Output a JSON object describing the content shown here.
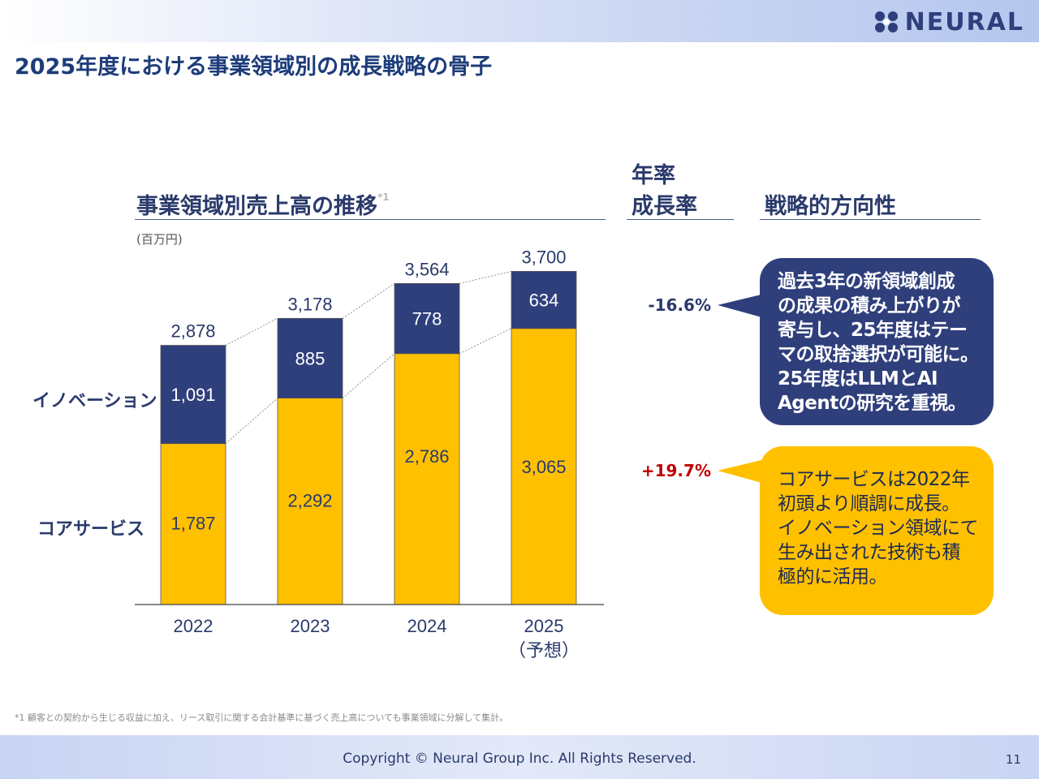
{
  "header": {
    "title": "2025年度における事業領域別の成長戦略の骨子",
    "logo_text": "NEURAL",
    "colors": {
      "navy": "#2f3f7c",
      "gold": "#ffc000",
      "negative": "#2a3a6b",
      "positive": "#c00000"
    }
  },
  "chart_section": {
    "heading": "事業領域別売上高の推移",
    "heading_note": "*1",
    "unit": "(百万円)",
    "segment_labels": {
      "innovation": "イノベーション",
      "core": "コアサービス"
    }
  },
  "rate_section": {
    "heading_line1": "年率",
    "heading_line2": "成長率"
  },
  "strategy_section": {
    "heading": "戦略的方向性"
  },
  "rates": {
    "innovation": "-16.6%",
    "core": "+19.7%"
  },
  "strategies": {
    "innovation": [
      "過去3年の新領域創成",
      "の成果の積み上がりが",
      "寄与し、25年度はテー",
      "マの取捨選択が可能に。",
      "25年度はLLMとAI",
      "Agentの研究を重視。"
    ],
    "core": [
      "コアサービスは2022年",
      "初頭より順調に成長。",
      "イノベーション領域にて",
      "生み出された技術も積",
      "極的に活用。"
    ]
  },
  "chart_data": {
    "type": "bar",
    "stacked": true,
    "categories": [
      "2022",
      "2023",
      "2024",
      "2025"
    ],
    "category_notes": [
      "",
      "",
      "",
      "（予想）"
    ],
    "series": [
      {
        "name": "コアサービス",
        "values": [
          1787,
          2292,
          2786,
          3065
        ],
        "color": "#ffc000"
      },
      {
        "name": "イノベーション",
        "values": [
          1091,
          885,
          778,
          634
        ],
        "color": "#2f3f7c"
      }
    ],
    "totals": [
      2878,
      3178,
      3564,
      3700
    ],
    "total_labels": [
      "2,878",
      "3,178",
      "3,564",
      "3,700"
    ],
    "value_labels": {
      "コアサービス": [
        "1,787",
        "2,292",
        "2,786",
        "3,065"
      ],
      "イノベーション": [
        "1,091",
        "885",
        "778",
        "634"
      ]
    },
    "ylim": [
      0,
      4000
    ]
  },
  "footer": {
    "footnote": "*1 顧客との契約から生じる収益に加え、リース取引に関する会計基準に基づく売上高についても事業領域に分解して集計。",
    "copyright": "Copyright © Neural Group Inc. All Rights Reserved.",
    "page": "11"
  }
}
